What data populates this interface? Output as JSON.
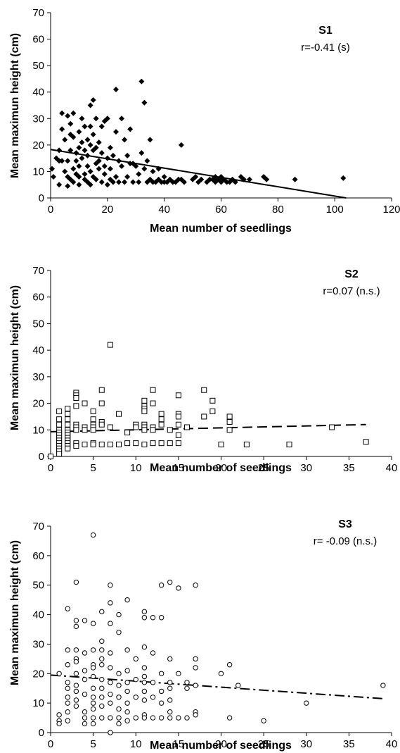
{
  "chart_data": [
    {
      "type": "scatter",
      "title": "S1",
      "annotation": "r=-0.41 (s)",
      "xlabel": "Mean number of seedlings",
      "ylabel": "Mean maximun height (cm)",
      "xlim": [
        0,
        120
      ],
      "ylim": [
        0,
        70
      ],
      "xticks": [
        "0",
        "20",
        "40",
        "60",
        "80",
        "100",
        "120"
      ],
      "yticks": [
        "0",
        "10",
        "20",
        "30",
        "40",
        "50",
        "60",
        "70"
      ],
      "marker": "filled-diamond",
      "trendline": {
        "style": "solid",
        "x": [
          0,
          104
        ],
        "y": [
          18.3,
          0
        ]
      },
      "points": [
        [
          0.5,
          11
        ],
        [
          1,
          8
        ],
        [
          2,
          15
        ],
        [
          3,
          18
        ],
        [
          3,
          5
        ],
        [
          3,
          14
        ],
        [
          4,
          32
        ],
        [
          4,
          14
        ],
        [
          4,
          26
        ],
        [
          5,
          22
        ],
        [
          5,
          10
        ],
        [
          6,
          4.5
        ],
        [
          6,
          8
        ],
        [
          6,
          31
        ],
        [
          6,
          14
        ],
        [
          7,
          28
        ],
        [
          7,
          18
        ],
        [
          7,
          7
        ],
        [
          7,
          24
        ],
        [
          8,
          32
        ],
        [
          8,
          23
        ],
        [
          8,
          11
        ],
        [
          8,
          6
        ],
        [
          9,
          17
        ],
        [
          9,
          9
        ],
        [
          9,
          14
        ],
        [
          10,
          19
        ],
        [
          10,
          8
        ],
        [
          10,
          25
        ],
        [
          10,
          5
        ],
        [
          10,
          12
        ],
        [
          11,
          15
        ],
        [
          11,
          30
        ],
        [
          11,
          21
        ],
        [
          12,
          7
        ],
        [
          12,
          18
        ],
        [
          12,
          27
        ],
        [
          12,
          9
        ],
        [
          13,
          22
        ],
        [
          13,
          12
        ],
        [
          13,
          6
        ],
        [
          13,
          16
        ],
        [
          14,
          35
        ],
        [
          14,
          27
        ],
        [
          14,
          10
        ],
        [
          14,
          20
        ],
        [
          14,
          5
        ],
        [
          15,
          37
        ],
        [
          15,
          18
        ],
        [
          15,
          8
        ],
        [
          15,
          24
        ],
        [
          16,
          13
        ],
        [
          16,
          30
        ],
        [
          16,
          19
        ],
        [
          16,
          7
        ],
        [
          17,
          21
        ],
        [
          17,
          14
        ],
        [
          17,
          11
        ],
        [
          18,
          27
        ],
        [
          18,
          6
        ],
        [
          18,
          17
        ],
        [
          19,
          9
        ],
        [
          19,
          29
        ],
        [
          19,
          12
        ],
        [
          20,
          15
        ],
        [
          20,
          5
        ],
        [
          20,
          30
        ],
        [
          21,
          11
        ],
        [
          21,
          19
        ],
        [
          21,
          7
        ],
        [
          22,
          6
        ],
        [
          22,
          16
        ],
        [
          23,
          8
        ],
        [
          23,
          41
        ],
        [
          23,
          25
        ],
        [
          24,
          14
        ],
        [
          24,
          6
        ],
        [
          25,
          30
        ],
        [
          25,
          12
        ],
        [
          26,
          22
        ],
        [
          26,
          6
        ],
        [
          27,
          16
        ],
        [
          27,
          8
        ],
        [
          28,
          13
        ],
        [
          28,
          26
        ],
        [
          29,
          6
        ],
        [
          29,
          13
        ],
        [
          30,
          12
        ],
        [
          31,
          9
        ],
        [
          31,
          6
        ],
        [
          32,
          17
        ],
        [
          32,
          44
        ],
        [
          33,
          36
        ],
        [
          33,
          11
        ],
        [
          34,
          14
        ],
        [
          34,
          6
        ],
        [
          35,
          22
        ],
        [
          35,
          7
        ],
        [
          36,
          10
        ],
        [
          36,
          6
        ],
        [
          37,
          6
        ],
        [
          38,
          11
        ],
        [
          38,
          7
        ],
        [
          39,
          6
        ],
        [
          40,
          8
        ],
        [
          40,
          6
        ],
        [
          41,
          6
        ],
        [
          42,
          7
        ],
        [
          43,
          6
        ],
        [
          44,
          6
        ],
        [
          45,
          7
        ],
        [
          46,
          20
        ],
        [
          46,
          7
        ],
        [
          47,
          6
        ],
        [
          50,
          7
        ],
        [
          51,
          8
        ],
        [
          52,
          6
        ],
        [
          53,
          7
        ],
        [
          55,
          6
        ],
        [
          56,
          7
        ],
        [
          57,
          7
        ],
        [
          58,
          8
        ],
        [
          58,
          6
        ],
        [
          59,
          7
        ],
        [
          60,
          8
        ],
        [
          60,
          6
        ],
        [
          61,
          7
        ],
        [
          62,
          6
        ],
        [
          63,
          6
        ],
        [
          64,
          7
        ],
        [
          65,
          6
        ],
        [
          67,
          8
        ],
        [
          68,
          7
        ],
        [
          70,
          7
        ],
        [
          75,
          8
        ],
        [
          76,
          7
        ],
        [
          86,
          7
        ],
        [
          103,
          7.5
        ]
      ]
    },
    {
      "type": "scatter",
      "title": "S2",
      "annotation": "r=0.07 (n.s.)",
      "xlabel": "Mean number of seedlings",
      "ylabel": "Mean maximun height (cm)",
      "xlim": [
        0,
        40
      ],
      "ylim": [
        0,
        70
      ],
      "xticks": [
        "0",
        "5",
        "10",
        "15",
        "20",
        "25",
        "30",
        "35",
        "40"
      ],
      "yticks": [
        "0",
        "10",
        "20",
        "30",
        "40",
        "50",
        "60",
        "70"
      ],
      "marker": "open-square",
      "trendline": {
        "style": "dashed",
        "x": [
          0,
          37
        ],
        "y": [
          9.3,
          12
        ]
      },
      "points": [
        [
          0,
          0
        ],
        [
          1,
          17
        ],
        [
          1,
          14
        ],
        [
          1,
          12
        ],
        [
          1,
          10
        ],
        [
          1,
          9
        ],
        [
          1,
          8
        ],
        [
          1,
          7
        ],
        [
          1,
          6
        ],
        [
          1,
          5
        ],
        [
          1,
          4
        ],
        [
          1,
          3
        ],
        [
          1,
          2
        ],
        [
          1,
          1
        ],
        [
          2,
          18
        ],
        [
          2,
          16
        ],
        [
          2,
          14
        ],
        [
          2,
          12
        ],
        [
          2,
          10
        ],
        [
          2,
          9
        ],
        [
          2,
          8
        ],
        [
          2,
          7
        ],
        [
          2,
          6
        ],
        [
          2,
          5
        ],
        [
          2,
          4
        ],
        [
          2,
          3
        ],
        [
          3,
          24
        ],
        [
          3,
          23
        ],
        [
          3,
          22
        ],
        [
          3,
          19
        ],
        [
          3,
          12
        ],
        [
          3,
          11
        ],
        [
          3,
          10
        ],
        [
          3,
          5
        ],
        [
          3,
          4
        ],
        [
          4,
          20
        ],
        [
          4,
          11
        ],
        [
          4,
          10
        ],
        [
          4,
          4.5
        ],
        [
          5,
          17
        ],
        [
          5,
          14
        ],
        [
          5,
          12
        ],
        [
          5,
          11
        ],
        [
          5,
          10
        ],
        [
          5,
          5
        ],
        [
          5,
          4.5
        ],
        [
          6,
          25
        ],
        [
          6,
          20
        ],
        [
          6,
          13
        ],
        [
          6,
          12
        ],
        [
          6,
          4.5
        ],
        [
          7,
          42
        ],
        [
          7,
          11
        ],
        [
          7,
          4.5
        ],
        [
          8,
          16
        ],
        [
          8,
          4.5
        ],
        [
          9,
          9
        ],
        [
          9,
          5
        ],
        [
          10,
          12
        ],
        [
          10,
          11
        ],
        [
          10,
          5
        ],
        [
          11,
          21
        ],
        [
          11,
          19
        ],
        [
          11,
          18
        ],
        [
          11,
          17
        ],
        [
          11,
          12
        ],
        [
          11,
          11
        ],
        [
          11,
          10
        ],
        [
          11,
          4.5
        ],
        [
          12,
          25
        ],
        [
          12,
          20
        ],
        [
          12,
          11
        ],
        [
          12,
          10
        ],
        [
          12,
          5
        ],
        [
          13,
          16
        ],
        [
          13,
          14
        ],
        [
          13,
          12
        ],
        [
          13,
          5
        ],
        [
          14,
          10
        ],
        [
          14,
          5
        ],
        [
          15,
          23
        ],
        [
          15,
          16
        ],
        [
          15,
          15
        ],
        [
          15,
          12
        ],
        [
          15,
          8
        ],
        [
          15,
          5
        ],
        [
          16,
          11
        ],
        [
          18,
          25
        ],
        [
          18,
          15
        ],
        [
          19,
          21
        ],
        [
          19,
          17
        ],
        [
          20,
          4.5
        ],
        [
          21,
          15
        ],
        [
          21,
          13
        ],
        [
          21,
          10
        ],
        [
          23,
          4.5
        ],
        [
          28,
          4.5
        ],
        [
          33,
          11
        ],
        [
          37,
          5.5
        ]
      ]
    },
    {
      "type": "scatter",
      "title": "S3",
      "annotation": "r= -0.09 (n.s.)",
      "xlabel": "Mean number of seedlings",
      "ylabel": "Mean maximun height (cm)",
      "xlim": [
        0,
        40
      ],
      "ylim": [
        0,
        70
      ],
      "xticks": [
        "0",
        "5",
        "10",
        "15",
        "20",
        "25",
        "30",
        "35",
        "40"
      ],
      "yticks": [
        "0",
        "10",
        "20",
        "30",
        "40",
        "50",
        "60",
        "70"
      ],
      "marker": "open-circle",
      "trendline": {
        "style": "dash-dot",
        "x": [
          0,
          39
        ],
        "y": [
          19.5,
          11.5
        ]
      },
      "points": [
        [
          1,
          20
        ],
        [
          1,
          6
        ],
        [
          1,
          4
        ],
        [
          1,
          3
        ],
        [
          2,
          42
        ],
        [
          2,
          28
        ],
        [
          2,
          23
        ],
        [
          2,
          17
        ],
        [
          2,
          15
        ],
        [
          2,
          12
        ],
        [
          2,
          10
        ],
        [
          2,
          7
        ],
        [
          2,
          4
        ],
        [
          3,
          51
        ],
        [
          3,
          38
        ],
        [
          3,
          36
        ],
        [
          3,
          28
        ],
        [
          3,
          25
        ],
        [
          3,
          24
        ],
        [
          3,
          20
        ],
        [
          3,
          16
        ],
        [
          3,
          14
        ],
        [
          3,
          11
        ],
        [
          3,
          9
        ],
        [
          4,
          38
        ],
        [
          4,
          27
        ],
        [
          4,
          21
        ],
        [
          4,
          18
        ],
        [
          4,
          13
        ],
        [
          4,
          7
        ],
        [
          4,
          5
        ],
        [
          4,
          3
        ],
        [
          5,
          67
        ],
        [
          5,
          37
        ],
        [
          5,
          28
        ],
        [
          5,
          23
        ],
        [
          5,
          22
        ],
        [
          5,
          19
        ],
        [
          5,
          15
        ],
        [
          5,
          12
        ],
        [
          5,
          10
        ],
        [
          5,
          8
        ],
        [
          5,
          5
        ],
        [
          5,
          3
        ],
        [
          6,
          41
        ],
        [
          6,
          31
        ],
        [
          6,
          28
        ],
        [
          6,
          25
        ],
        [
          6,
          23
        ],
        [
          6,
          18
        ],
        [
          6,
          15
        ],
        [
          6,
          12
        ],
        [
          6,
          9
        ],
        [
          6,
          5
        ],
        [
          7,
          50
        ],
        [
          7,
          44
        ],
        [
          7,
          37
        ],
        [
          7,
          27
        ],
        [
          7,
          22
        ],
        [
          7,
          17
        ],
        [
          7,
          13
        ],
        [
          7,
          10
        ],
        [
          7,
          5
        ],
        [
          7,
          0
        ],
        [
          8,
          40
        ],
        [
          8,
          34
        ],
        [
          8,
          20
        ],
        [
          8,
          16
        ],
        [
          8,
          12
        ],
        [
          8,
          8
        ],
        [
          8,
          5
        ],
        [
          8,
          3
        ],
        [
          9,
          45
        ],
        [
          9,
          28
        ],
        [
          9,
          21
        ],
        [
          9,
          17
        ],
        [
          9,
          14
        ],
        [
          9,
          10
        ],
        [
          9,
          7
        ],
        [
          9,
          4
        ],
        [
          10,
          25
        ],
        [
          10,
          18
        ],
        [
          10,
          12
        ],
        [
          10,
          5
        ],
        [
          11,
          41
        ],
        [
          11,
          39
        ],
        [
          11,
          29
        ],
        [
          11,
          22
        ],
        [
          11,
          19
        ],
        [
          11,
          17
        ],
        [
          11,
          14
        ],
        [
          11,
          11
        ],
        [
          11,
          6
        ],
        [
          11,
          5
        ],
        [
          12,
          39
        ],
        [
          12,
          27
        ],
        [
          12,
          17
        ],
        [
          12,
          12
        ],
        [
          12,
          5
        ],
        [
          13,
          50
        ],
        [
          13,
          39
        ],
        [
          13,
          20
        ],
        [
          13,
          14
        ],
        [
          13,
          10
        ],
        [
          13,
          5
        ],
        [
          14,
          51
        ],
        [
          14,
          25
        ],
        [
          14,
          17
        ],
        [
          14,
          15
        ],
        [
          14,
          11
        ],
        [
          14,
          7
        ],
        [
          14,
          5
        ],
        [
          15,
          49
        ],
        [
          15,
          20
        ],
        [
          15,
          5
        ],
        [
          16,
          17
        ],
        [
          16,
          15
        ],
        [
          16,
          5
        ],
        [
          17,
          50
        ],
        [
          17,
          25
        ],
        [
          17,
          22
        ],
        [
          17,
          16
        ],
        [
          17,
          7
        ],
        [
          17,
          6
        ],
        [
          20,
          20
        ],
        [
          21,
          23
        ],
        [
          21,
          5
        ],
        [
          22,
          16
        ],
        [
          25,
          4
        ],
        [
          30,
          10
        ],
        [
          39,
          16
        ]
      ]
    }
  ]
}
